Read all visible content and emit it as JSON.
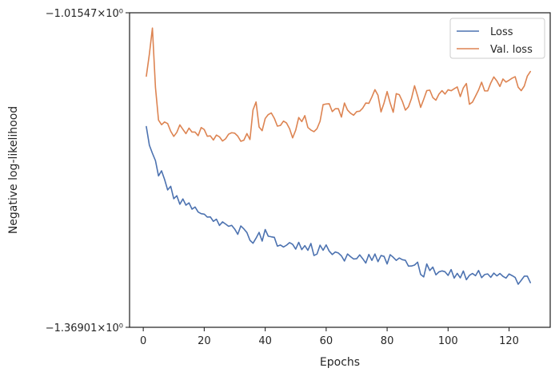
{
  "chart_data": {
    "type": "line",
    "xlabel": "Epochs",
    "ylabel": "Negative log-likelihood",
    "xlim": [
      -4.5,
      133.5
    ],
    "ylim": [
      -1.36901,
      -1.01547
    ],
    "xticks": [
      0,
      20,
      40,
      60,
      80,
      100,
      120
    ],
    "yticks": [
      -1.36901,
      -1.01547
    ],
    "ytick_labels": [
      "−1.36901×10⁰",
      "−1.01547×10⁰"
    ],
    "grid": false,
    "legend_position": "top-right",
    "colors": {
      "Loss": "#4c72b0",
      "Val. loss": "#dd8452"
    },
    "series": [
      {
        "name": "Loss",
        "x": [
          1,
          2,
          3,
          4,
          5,
          6,
          7,
          8,
          9,
          10,
          11,
          12,
          13,
          14,
          15,
          16,
          17,
          18,
          19,
          20,
          21,
          22,
          23,
          24,
          25,
          26,
          27,
          28,
          29,
          30,
          31,
          32,
          33,
          34,
          35,
          36,
          37,
          38,
          39,
          40,
          41,
          42,
          43,
          44,
          45,
          46,
          47,
          48,
          49,
          50,
          51,
          52,
          53,
          54,
          55,
          56,
          57,
          58,
          59,
          60,
          61,
          62,
          63,
          64,
          65,
          66,
          67,
          68,
          69,
          70,
          71,
          72,
          73,
          74,
          75,
          76,
          77,
          78,
          79,
          80,
          81,
          82,
          83,
          84,
          85,
          86,
          87,
          88,
          89,
          90,
          91,
          92,
          93,
          94,
          95,
          96,
          97,
          98,
          99,
          100,
          101,
          102,
          103,
          104,
          105,
          106,
          107,
          108,
          109,
          110,
          111,
          112,
          113,
          114,
          115,
          116,
          117,
          118,
          119,
          120,
          121,
          122,
          123,
          124,
          125,
          126,
          127
        ],
        "values": [
          -1.1434,
          -1.1643,
          -1.1734,
          -1.1817,
          -1.1988,
          -1.1931,
          -1.2029,
          -1.2146,
          -1.2105,
          -1.2245,
          -1.2211,
          -1.2307,
          -1.2247,
          -1.2317,
          -1.2291,
          -1.2362,
          -1.2338,
          -1.2394,
          -1.2413,
          -1.2418,
          -1.2451,
          -1.2449,
          -1.2499,
          -1.2475,
          -1.2545,
          -1.2505,
          -1.2529,
          -1.2555,
          -1.2544,
          -1.2586,
          -1.2645,
          -1.2551,
          -1.2584,
          -1.2625,
          -1.2712,
          -1.2745,
          -1.2688,
          -1.2623,
          -1.2721,
          -1.2591,
          -1.2666,
          -1.2673,
          -1.2679,
          -1.2778,
          -1.2765,
          -1.2788,
          -1.2767,
          -1.2738,
          -1.2758,
          -1.2811,
          -1.2735,
          -1.2817,
          -1.2772,
          -1.2825,
          -1.2748,
          -1.2883,
          -1.2866,
          -1.2767,
          -1.2824,
          -1.2764,
          -1.2834,
          -1.2872,
          -1.2843,
          -1.2855,
          -1.2887,
          -1.2945,
          -1.2866,
          -1.2896,
          -1.2922,
          -1.2919,
          -1.2876,
          -1.2919,
          -1.2968,
          -1.2871,
          -1.2938,
          -1.2866,
          -1.2952,
          -1.2883,
          -1.2893,
          -1.2978,
          -1.2874,
          -1.2903,
          -1.2938,
          -1.2911,
          -1.293,
          -1.2937,
          -1.3002,
          -1.3001,
          -1.299,
          -1.2958,
          -1.3096,
          -1.3124,
          -1.2978,
          -1.3052,
          -1.3013,
          -1.31,
          -1.3067,
          -1.3056,
          -1.3066,
          -1.3107,
          -1.3041,
          -1.3137,
          -1.3084,
          -1.3134,
          -1.3057,
          -1.3155,
          -1.3106,
          -1.3085,
          -1.311,
          -1.3051,
          -1.3132,
          -1.3097,
          -1.309,
          -1.3128,
          -1.3081,
          -1.3112,
          -1.3085,
          -1.3117,
          -1.3137,
          -1.3091,
          -1.3109,
          -1.313,
          -1.3206,
          -1.3162,
          -1.3115,
          -1.3115,
          -1.3188
        ]
      },
      {
        "name": "Val. loss",
        "x": [
          1,
          2,
          3,
          4,
          5,
          6,
          7,
          8,
          9,
          10,
          11,
          12,
          13,
          14,
          15,
          16,
          17,
          18,
          19,
          20,
          21,
          22,
          23,
          24,
          25,
          26,
          27,
          28,
          29,
          30,
          31,
          32,
          33,
          34,
          35,
          36,
          37,
          38,
          39,
          40,
          41,
          42,
          43,
          44,
          45,
          46,
          47,
          48,
          49,
          50,
          51,
          52,
          53,
          54,
          55,
          56,
          57,
          58,
          59,
          60,
          61,
          62,
          63,
          64,
          65,
          66,
          67,
          68,
          69,
          70,
          71,
          72,
          73,
          74,
          75,
          76,
          77,
          78,
          79,
          80,
          81,
          82,
          83,
          84,
          85,
          86,
          87,
          88,
          89,
          90,
          91,
          92,
          93,
          94,
          95,
          96,
          97,
          98,
          99,
          100,
          101,
          102,
          103,
          104,
          105,
          106,
          107,
          108,
          109,
          110,
          111,
          112,
          113,
          114,
          115,
          116,
          117,
          118,
          119,
          120,
          121,
          122,
          123,
          124,
          125,
          126,
          127
        ],
        "values": [
          -1.0868,
          -1.062,
          -1.0327,
          -1.0994,
          -1.1361,
          -1.1413,
          -1.1382,
          -1.14,
          -1.1486,
          -1.1544,
          -1.1499,
          -1.1415,
          -1.1465,
          -1.1513,
          -1.1451,
          -1.1496,
          -1.1496,
          -1.1536,
          -1.1445,
          -1.1467,
          -1.1543,
          -1.1538,
          -1.1585,
          -1.1529,
          -1.1549,
          -1.1596,
          -1.1571,
          -1.1519,
          -1.1503,
          -1.1508,
          -1.1541,
          -1.1599,
          -1.1587,
          -1.1513,
          -1.1579,
          -1.1247,
          -1.1157,
          -1.1439,
          -1.148,
          -1.1343,
          -1.1299,
          -1.1281,
          -1.1341,
          -1.1429,
          -1.1421,
          -1.1372,
          -1.1394,
          -1.1458,
          -1.1561,
          -1.1475,
          -1.1332,
          -1.1378,
          -1.1311,
          -1.1444,
          -1.1473,
          -1.1491,
          -1.1457,
          -1.1374,
          -1.1187,
          -1.118,
          -1.1177,
          -1.1265,
          -1.1233,
          -1.1233,
          -1.1327,
          -1.1169,
          -1.1248,
          -1.1284,
          -1.1306,
          -1.1266,
          -1.1261,
          -1.1226,
          -1.1169,
          -1.1173,
          -1.1101,
          -1.1019,
          -1.1081,
          -1.1269,
          -1.1167,
          -1.104,
          -1.1169,
          -1.1273,
          -1.1064,
          -1.1076,
          -1.115,
          -1.1249,
          -1.1212,
          -1.1117,
          -1.0975,
          -1.109,
          -1.1218,
          -1.1127,
          -1.103,
          -1.1024,
          -1.1108,
          -1.1137,
          -1.1069,
          -1.103,
          -1.1068,
          -1.102,
          -1.1031,
          -1.1009,
          -1.0988,
          -1.1097,
          -1.0999,
          -1.095,
          -1.1183,
          -1.1159,
          -1.1091,
          -1.1023,
          -1.0935,
          -1.1033,
          -1.1033,
          -1.0944,
          -1.0876,
          -1.0921,
          -1.0983,
          -1.0899,
          -1.0934,
          -1.0913,
          -1.089,
          -1.0873,
          -1.0992,
          -1.103,
          -1.0978,
          -1.0866,
          -1.0815
        ]
      }
    ]
  }
}
